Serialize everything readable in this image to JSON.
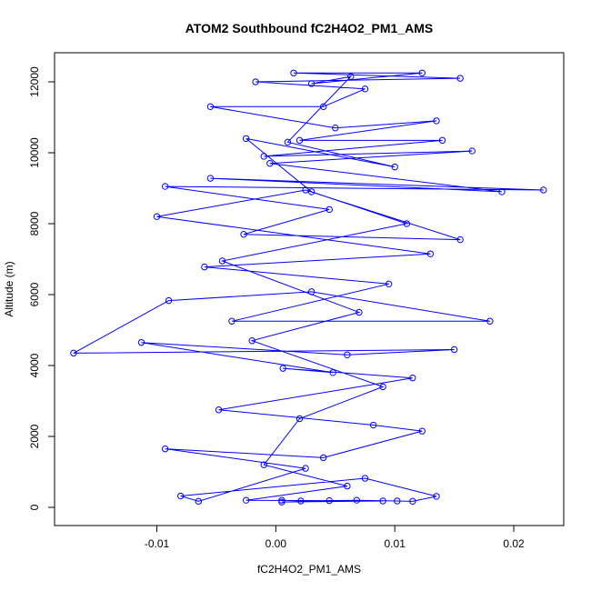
{
  "chart_data": {
    "type": "line",
    "title": "ATOM2 Southbound fC2H4O2_PM1_AMS",
    "x_label": "fC2H4O2_PM1_AMS",
    "y_label": "Altitude (m)",
    "color": "#0000ff",
    "markers": true,
    "grid": false,
    "xlim": [
      -0.0186,
      0.0242
    ],
    "ylim": [
      -513,
      12821
    ],
    "xticks": [
      -0.01,
      {
        "value": 0,
        "label": "0.00"
      },
      0.01,
      0.02
    ],
    "yticks": [
      0,
      2000,
      4000,
      6000,
      8000,
      10000,
      12000
    ],
    "x": [
      0.0005,
      0.0021,
      0.0045,
      0.0068,
      0.0102,
      0.0115,
      0.0135,
      0.0075,
      -0.008,
      -0.0065,
      0.0025,
      -0.0093,
      0.004,
      0.0123,
      0.0082,
      -0.0048,
      0.0115,
      0.0006,
      0.0048,
      -0.0113,
      0.006,
      0.015,
      -0.017,
      -0.009,
      0.003,
      0.018,
      -0.0037,
      0.0095,
      -0.006,
      0.013,
      -0.01,
      0.0025,
      0.0155,
      -0.0027,
      0.0045,
      -0.0093,
      0.0225,
      -0.0055,
      0.019,
      -0.0005,
      0.0165,
      -0.001,
      0.014,
      0.002,
      0.0135,
      0.005,
      -0.0055,
      0.004,
      0.0075,
      -0.0017,
      0.0155,
      0.0015,
      0.0123,
      0.003,
      0.0063,
      0.001,
      0.01,
      -0.0025,
      0.003,
      0.011,
      -0.0045,
      0.007,
      -0.002,
      0.009,
      0.002,
      -0.001,
      0.006,
      -0.0025,
      0.009,
      0.0005
    ],
    "values": [
      200,
      180,
      190,
      200,
      180,
      170,
      310,
      820,
      320,
      170,
      1100,
      1650,
      1400,
      2150,
      2320,
      2750,
      3650,
      3920,
      3800,
      4650,
      4300,
      4450,
      4350,
      5830,
      6080,
      5250,
      5250,
      6300,
      6780,
      7150,
      8200,
      8950,
      7550,
      7700,
      8400,
      9050,
      8950,
      9280,
      8900,
      9700,
      10050,
      9900,
      10350,
      10350,
      10900,
      10700,
      11300,
      11300,
      11800,
      12000,
      12100,
      12250,
      12250,
      11950,
      12150,
      10300,
      9600,
      10400,
      8900,
      8000,
      6950,
      5500,
      4700,
      3400,
      2500,
      1200,
      600,
      200,
      180,
      150
    ]
  }
}
